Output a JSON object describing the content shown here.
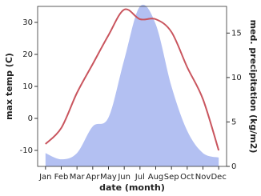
{
  "chart_data": {
    "type": "line-area",
    "categories": [
      "Jan",
      "Feb",
      "Mar",
      "Apr",
      "May",
      "Jun",
      "Jul",
      "Aug",
      "Sep",
      "Oct",
      "Nov",
      "Dec"
    ],
    "xlabel": "date (month)",
    "ylabel": "max temp (C)",
    "y2label": "med. precipitation (kg/m2)",
    "ylim": [
      -15,
      35
    ],
    "yticks": [
      -10,
      0,
      10,
      20,
      30
    ],
    "y2lim": [
      0,
      18
    ],
    "y2ticks": [
      0,
      5,
      10,
      15
    ],
    "series": [
      {
        "name": "max temp",
        "type": "line",
        "color": "#c9555e",
        "values": [
          -8,
          -3,
          8,
          17,
          26,
          34,
          31,
          31,
          27,
          16,
          6,
          -10
        ]
      },
      {
        "name": "med. precipitation",
        "type": "area",
        "axis": "y2",
        "color": "#b3c0f2",
        "values": [
          1.5,
          0.8,
          1.5,
          4.5,
          5.5,
          12,
          18,
          16,
          9,
          4,
          1.5,
          1
        ]
      }
    ]
  }
}
